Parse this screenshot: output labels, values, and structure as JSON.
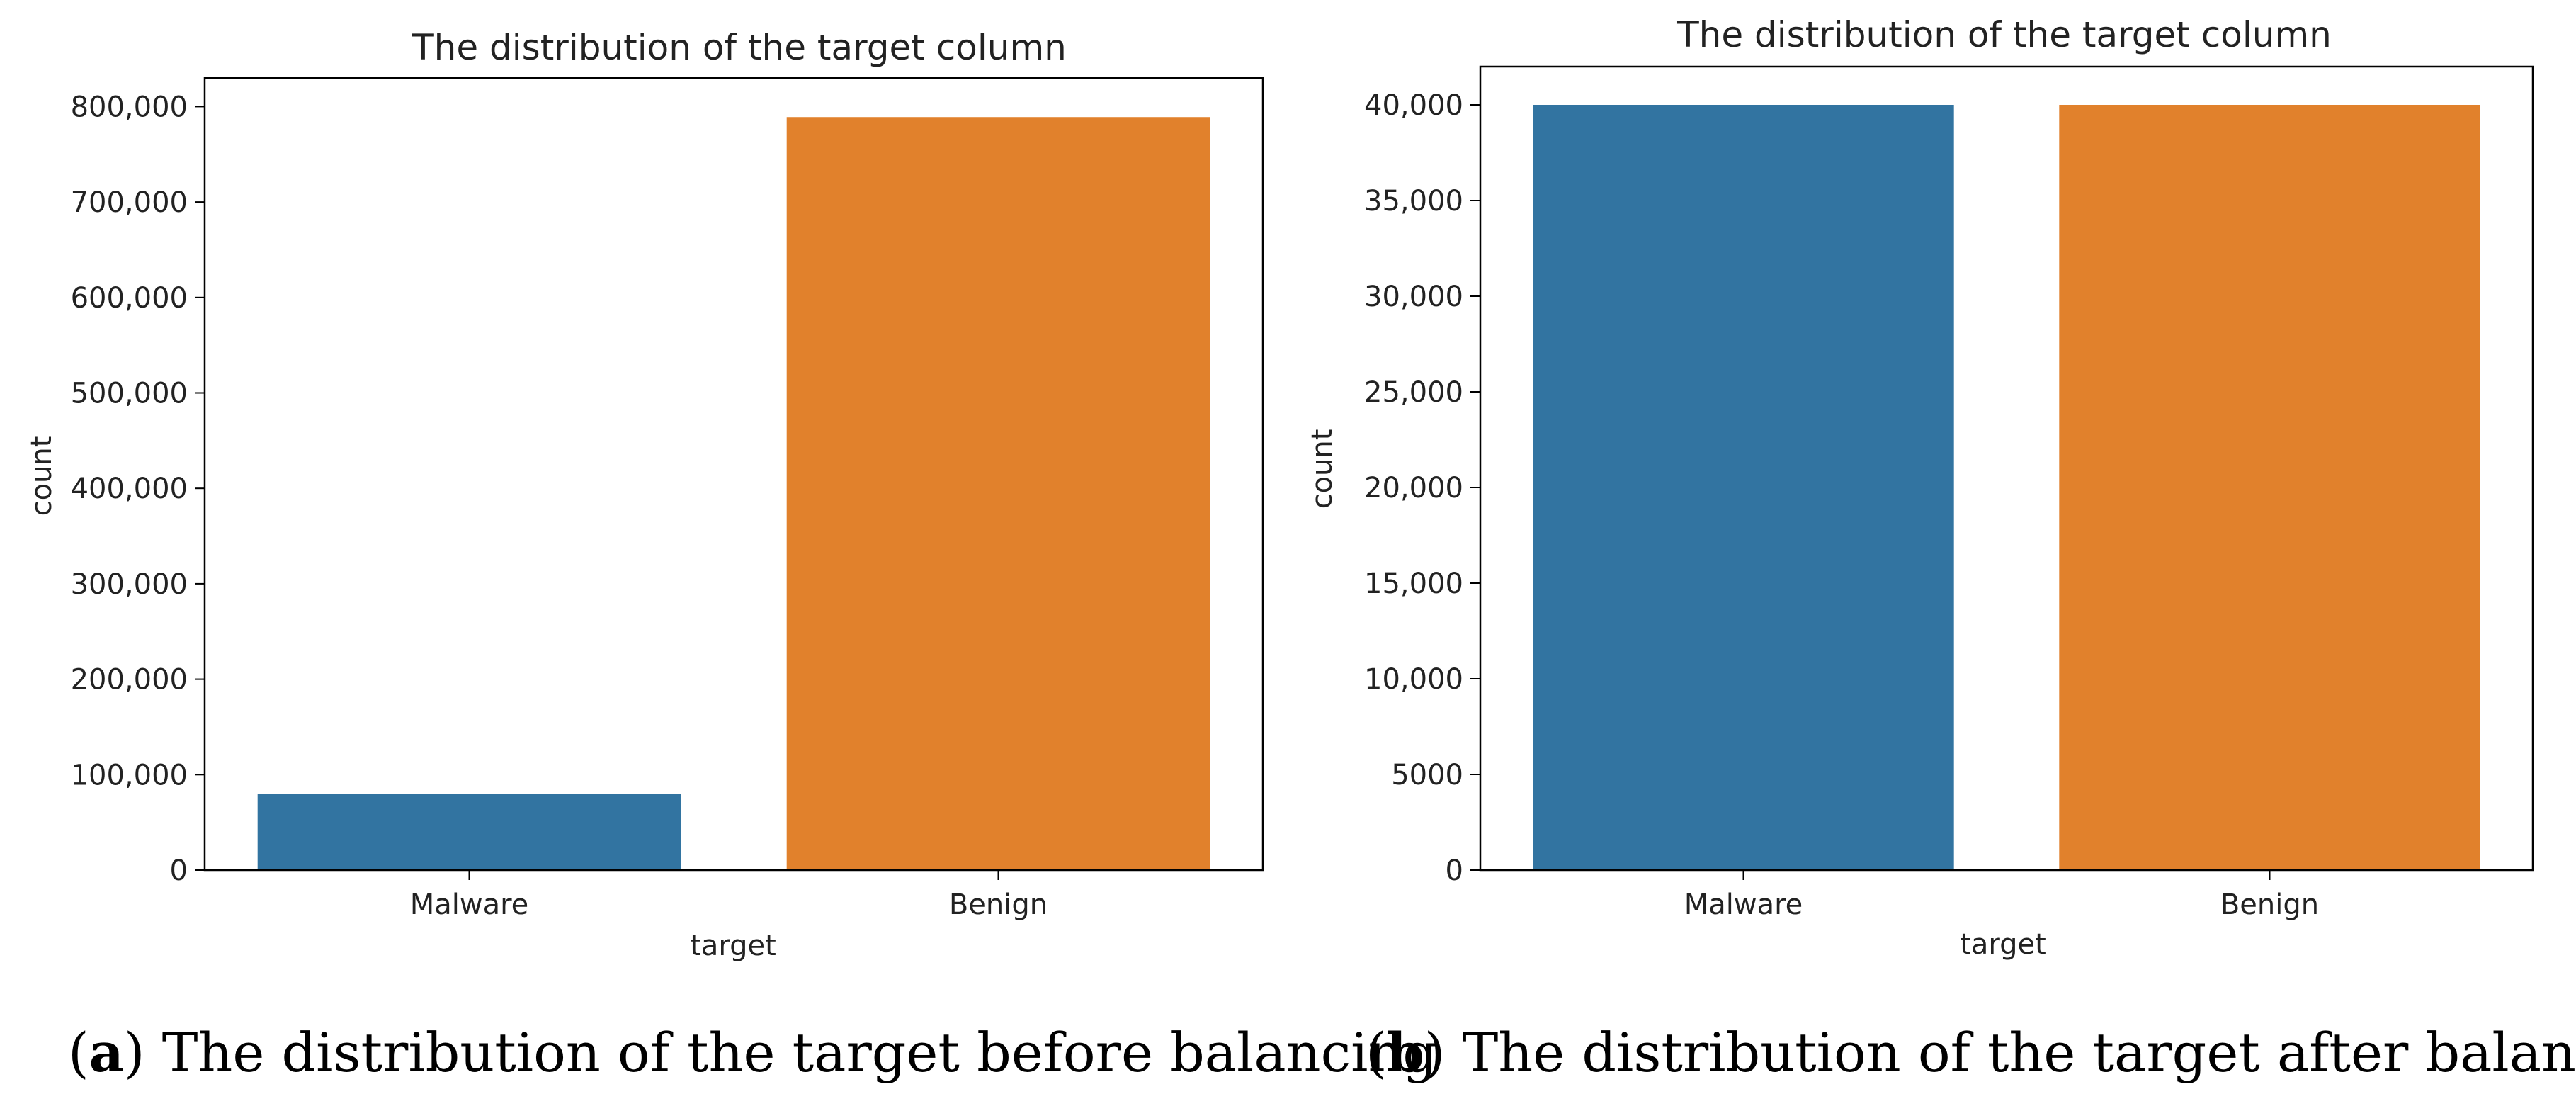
{
  "chart_data": [
    {
      "type": "bar",
      "title": "The distribution of the target column",
      "xlabel": "target",
      "ylabel": "count",
      "categories": [
        "Malware",
        "Benign"
      ],
      "values": [
        80000,
        789000
      ],
      "ylim": [
        0,
        830000
      ],
      "yticks": [
        0,
        100000,
        200000,
        300000,
        400000,
        500000,
        600000,
        700000,
        800000
      ],
      "ytick_labels": [
        "0",
        "100,000",
        "200,000",
        "300,000",
        "400,000",
        "500,000",
        "600,000",
        "700,000",
        "800,000"
      ],
      "grid": false,
      "colors": [
        "#3274a1",
        "#e1812c"
      ]
    },
    {
      "type": "bar",
      "title": "The distribution of the target column",
      "xlabel": "target",
      "ylabel": "count",
      "categories": [
        "Malware",
        "Benign"
      ],
      "values": [
        40000,
        40000
      ],
      "ylim": [
        0,
        42000
      ],
      "yticks": [
        0,
        5000,
        10000,
        15000,
        20000,
        25000,
        30000,
        35000,
        40000
      ],
      "ytick_labels": [
        "0",
        "5000",
        "10,000",
        "15,000",
        "20,000",
        "25,000",
        "30,000",
        "35,000",
        "40,000"
      ],
      "grid": false,
      "colors": [
        "#3274a1",
        "#e1812c"
      ]
    }
  ],
  "captions": [
    {
      "letter": "a",
      "text": ") The distribution of the target before balancing"
    },
    {
      "letter": "b",
      "text": ") The distribution of the target after balancing"
    }
  ]
}
